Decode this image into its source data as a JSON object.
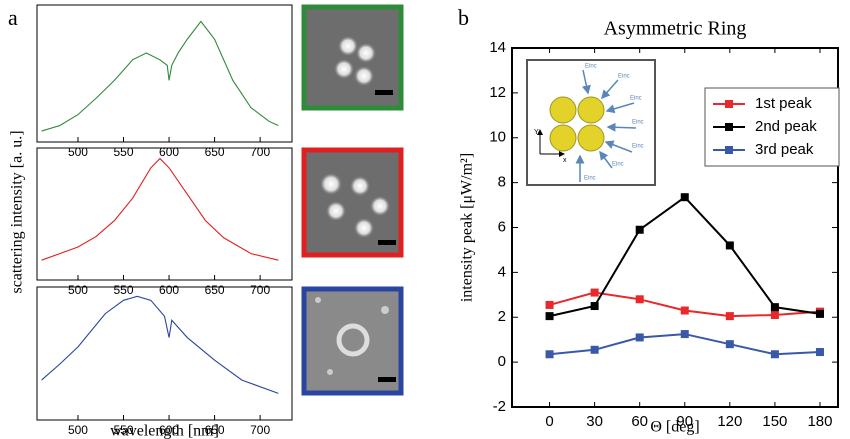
{
  "panel_labels": [
    "a",
    "b"
  ],
  "chart_data": [
    {
      "type": "line",
      "ylabel": "scattering intensity [a. u.]",
      "color": "#2e8b3a",
      "x": [
        460,
        480,
        500,
        520,
        540,
        560,
        575,
        590,
        598,
        600,
        603,
        610,
        620,
        635,
        650,
        670,
        690,
        710,
        720
      ],
      "values": [
        0.08,
        0.12,
        0.2,
        0.32,
        0.45,
        0.6,
        0.65,
        0.6,
        0.56,
        0.45,
        0.56,
        0.65,
        0.75,
        0.88,
        0.75,
        0.45,
        0.25,
        0.15,
        0.12
      ],
      "xlim": [
        455,
        735
      ],
      "ylim": [
        0,
        1
      ],
      "xticks": [
        500,
        550,
        600,
        650,
        700
      ]
    },
    {
      "type": "line",
      "color": "#e02020",
      "x": [
        460,
        480,
        500,
        520,
        540,
        560,
        580,
        590,
        600,
        620,
        640,
        660,
        690,
        720
      ],
      "values": [
        0.15,
        0.2,
        0.25,
        0.33,
        0.45,
        0.62,
        0.85,
        0.92,
        0.85,
        0.65,
        0.45,
        0.32,
        0.2,
        0.15
      ],
      "xlim": [
        455,
        735
      ],
      "ylim": [
        0,
        1
      ],
      "xticks": [
        500,
        550,
        600,
        650,
        700
      ]
    },
    {
      "type": "line",
      "xlabel": "wavelength [nm]",
      "color": "#2a45a0",
      "x": [
        460,
        480,
        500,
        530,
        550,
        565,
        580,
        595,
        600,
        603,
        620,
        650,
        680,
        720
      ],
      "values": [
        0.3,
        0.42,
        0.55,
        0.8,
        0.9,
        0.93,
        0.9,
        0.78,
        0.62,
        0.75,
        0.62,
        0.45,
        0.3,
        0.2
      ],
      "xlim": [
        455,
        735
      ],
      "ylim": [
        0,
        1
      ],
      "xticks": [
        500,
        550,
        600,
        650,
        700
      ]
    },
    {
      "type": "line",
      "title": "Asymmetric Ring",
      "xlabel": "Θ [deg]",
      "ylabel": "intensity peak [μW/m²]",
      "x": [
        0,
        30,
        60,
        90,
        120,
        150,
        180
      ],
      "series": [
        {
          "name": "1st peak",
          "color": "#e8282a",
          "values": [
            2.55,
            3.1,
            2.8,
            2.3,
            2.05,
            2.1,
            2.25
          ]
        },
        {
          "name": "2nd peak",
          "color": "#000000",
          "values": [
            2.05,
            2.5,
            5.9,
            7.35,
            5.2,
            2.45,
            2.15
          ]
        },
        {
          "name": "3rd peak",
          "color": "#3a58a8",
          "values": [
            0.35,
            0.55,
            1.1,
            1.25,
            0.8,
            0.35,
            0.45
          ]
        }
      ],
      "xlim": [
        -25,
        192
      ],
      "ylim": [
        -2,
        14
      ],
      "xticks": [
        0,
        30,
        60,
        90,
        120,
        150,
        180
      ],
      "yticks": [
        -2,
        0,
        2,
        4,
        6,
        8,
        10,
        12,
        14
      ],
      "legend": "upper right",
      "markers": true,
      "inset": {
        "arrow_labels": [
          "Einc",
          "Einc",
          "Einc",
          "Einc",
          "Einc",
          "Einc",
          "Einc"
        ],
        "axis_labels": [
          "Y",
          "x"
        ]
      }
    }
  ]
}
